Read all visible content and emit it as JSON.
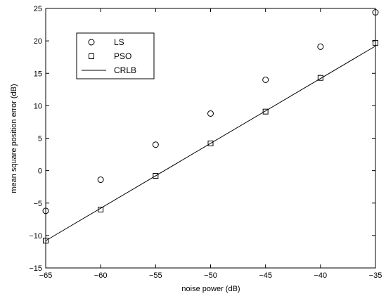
{
  "chart_data": {
    "type": "scatter",
    "xlabel": "noise power (dB)",
    "ylabel": "mean square position error (dB)",
    "xlim": [
      -65,
      -35
    ],
    "ylim": [
      -15,
      25
    ],
    "x_ticks": [
      -65,
      -60,
      -55,
      -50,
      -45,
      -40,
      -35
    ],
    "y_ticks": [
      -15,
      -10,
      -5,
      0,
      5,
      10,
      15,
      20,
      25
    ],
    "x_tick_labels": [
      "−65",
      "−60",
      "−55",
      "−50",
      "−45",
      "−40",
      "−35"
    ],
    "y_tick_labels": [
      "−15",
      "−10",
      "−5",
      "0",
      "5",
      "10",
      "15",
      "20",
      "25"
    ],
    "grid": false,
    "legend_position": "top-left",
    "series": [
      {
        "name": "LS",
        "marker": "circle",
        "x": [
          -65,
          -60,
          -55,
          -50,
          -45,
          -40,
          -35
        ],
        "y": [
          -6.2,
          -1.4,
          4.0,
          8.8,
          14.0,
          19.1,
          24.4
        ]
      },
      {
        "name": "PSO",
        "marker": "square",
        "x": [
          -65,
          -60,
          -55,
          -50,
          -45,
          -40,
          -35
        ],
        "y": [
          -10.8,
          -6.0,
          -0.8,
          4.2,
          9.1,
          14.3,
          19.7
        ]
      },
      {
        "name": "CRLB",
        "marker": "line",
        "x": [
          -65,
          -35
        ],
        "y": [
          -10.8,
          19.2
        ]
      }
    ]
  }
}
